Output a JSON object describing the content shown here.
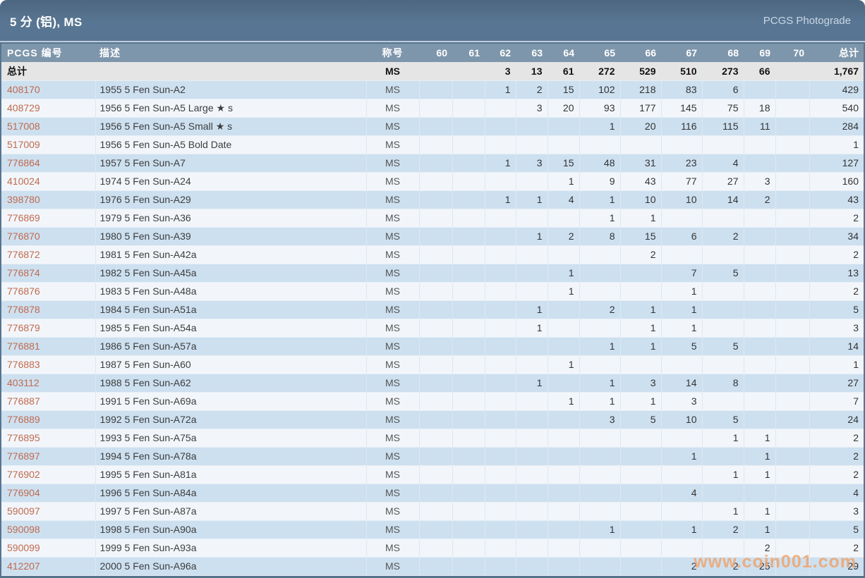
{
  "header": {
    "title": "5 分 (铝), MS",
    "photograde_link": "PCGS Photograde"
  },
  "table": {
    "columns": {
      "pcgs_no": "PCGS 编号",
      "description": "描述",
      "designation": "称号",
      "grades": [
        "60",
        "61",
        "62",
        "63",
        "64",
        "65",
        "66",
        "67",
        "68",
        "69",
        "70"
      ],
      "total": "总计"
    },
    "totals_row": {
      "label": "总计",
      "description": "",
      "designation": "MS",
      "grades": [
        "",
        "",
        "3",
        "13",
        "61",
        "272",
        "529",
        "510",
        "273",
        "66",
        ""
      ],
      "total": "1,767"
    },
    "rows": [
      {
        "pcgs_no": "408170",
        "description": "1955 5 Fen Sun-A2",
        "designation": "MS",
        "grades": [
          "",
          "",
          "1",
          "2",
          "15",
          "102",
          "218",
          "83",
          "6",
          "",
          ""
        ],
        "total": "429"
      },
      {
        "pcgs_no": "408729",
        "description": "1956 5 Fen Sun-A5 Large ★ s",
        "designation": "MS",
        "grades": [
          "",
          "",
          "",
          "3",
          "20",
          "93",
          "177",
          "145",
          "75",
          "18",
          ""
        ],
        "total": "540"
      },
      {
        "pcgs_no": "517008",
        "description": "1956 5 Fen Sun-A5 Small ★ s",
        "designation": "MS",
        "grades": [
          "",
          "",
          "",
          "",
          "",
          "1",
          "20",
          "116",
          "115",
          "11",
          ""
        ],
        "total": "284"
      },
      {
        "pcgs_no": "517009",
        "description": "1956 5 Fen Sun-A5 Bold Date",
        "designation": "MS",
        "grades": [
          "",
          "",
          "",
          "",
          "",
          "",
          "",
          "",
          "",
          "",
          ""
        ],
        "total": "1"
      },
      {
        "pcgs_no": "776864",
        "description": "1957 5 Fen Sun-A7",
        "designation": "MS",
        "grades": [
          "",
          "",
          "1",
          "3",
          "15",
          "48",
          "31",
          "23",
          "4",
          "",
          ""
        ],
        "total": "127"
      },
      {
        "pcgs_no": "410024",
        "description": "1974 5 Fen Sun-A24",
        "designation": "MS",
        "grades": [
          "",
          "",
          "",
          "",
          "1",
          "9",
          "43",
          "77",
          "27",
          "3",
          ""
        ],
        "total": "160"
      },
      {
        "pcgs_no": "398780",
        "description": "1976 5 Fen Sun-A29",
        "designation": "MS",
        "grades": [
          "",
          "",
          "1",
          "1",
          "4",
          "1",
          "10",
          "10",
          "14",
          "2",
          ""
        ],
        "total": "43"
      },
      {
        "pcgs_no": "776869",
        "description": "1979 5 Fen Sun-A36",
        "designation": "MS",
        "grades": [
          "",
          "",
          "",
          "",
          "",
          "1",
          "1",
          "",
          "",
          "",
          ""
        ],
        "total": "2"
      },
      {
        "pcgs_no": "776870",
        "description": "1980 5 Fen Sun-A39",
        "designation": "MS",
        "grades": [
          "",
          "",
          "",
          "1",
          "2",
          "8",
          "15",
          "6",
          "2",
          "",
          ""
        ],
        "total": "34"
      },
      {
        "pcgs_no": "776872",
        "description": "1981 5 Fen Sun-A42a",
        "designation": "MS",
        "grades": [
          "",
          "",
          "",
          "",
          "",
          "",
          "2",
          "",
          "",
          "",
          ""
        ],
        "total": "2"
      },
      {
        "pcgs_no": "776874",
        "description": "1982 5 Fen Sun-A45a",
        "designation": "MS",
        "grades": [
          "",
          "",
          "",
          "",
          "1",
          "",
          "",
          "7",
          "5",
          "",
          ""
        ],
        "total": "13"
      },
      {
        "pcgs_no": "776876",
        "description": "1983 5 Fen Sun-A48a",
        "designation": "MS",
        "grades": [
          "",
          "",
          "",
          "",
          "1",
          "",
          "",
          "1",
          "",
          "",
          ""
        ],
        "total": "2"
      },
      {
        "pcgs_no": "776878",
        "description": "1984 5 Fen Sun-A51a",
        "designation": "MS",
        "grades": [
          "",
          "",
          "",
          "1",
          "",
          "2",
          "1",
          "1",
          "",
          "",
          ""
        ],
        "total": "5"
      },
      {
        "pcgs_no": "776879",
        "description": "1985 5 Fen Sun-A54a",
        "designation": "MS",
        "grades": [
          "",
          "",
          "",
          "1",
          "",
          "",
          "1",
          "1",
          "",
          "",
          ""
        ],
        "total": "3"
      },
      {
        "pcgs_no": "776881",
        "description": "1986 5 Fen Sun-A57a",
        "designation": "MS",
        "grades": [
          "",
          "",
          "",
          "",
          "",
          "1",
          "1",
          "5",
          "5",
          "",
          ""
        ],
        "total": "14"
      },
      {
        "pcgs_no": "776883",
        "description": "1987 5 Fen Sun-A60",
        "designation": "MS",
        "grades": [
          "",
          "",
          "",
          "",
          "1",
          "",
          "",
          "",
          "",
          "",
          ""
        ],
        "total": "1"
      },
      {
        "pcgs_no": "403112",
        "description": "1988 5 Fen Sun-A62",
        "designation": "MS",
        "grades": [
          "",
          "",
          "",
          "1",
          "",
          "1",
          "3",
          "14",
          "8",
          "",
          ""
        ],
        "total": "27"
      },
      {
        "pcgs_no": "776887",
        "description": "1991 5 Fen Sun-A69a",
        "designation": "MS",
        "grades": [
          "",
          "",
          "",
          "",
          "1",
          "1",
          "1",
          "3",
          "",
          "",
          ""
        ],
        "total": "7"
      },
      {
        "pcgs_no": "776889",
        "description": "1992 5 Fen Sun-A72a",
        "designation": "MS",
        "grades": [
          "",
          "",
          "",
          "",
          "",
          "3",
          "5",
          "10",
          "5",
          "",
          ""
        ],
        "total": "24"
      },
      {
        "pcgs_no": "776895",
        "description": "1993 5 Fen Sun-A75a",
        "designation": "MS",
        "grades": [
          "",
          "",
          "",
          "",
          "",
          "",
          "",
          "",
          "1",
          "1",
          ""
        ],
        "total": "2"
      },
      {
        "pcgs_no": "776897",
        "description": "1994 5 Fen Sun-A78a",
        "designation": "MS",
        "grades": [
          "",
          "",
          "",
          "",
          "",
          "",
          "",
          "1",
          "",
          "1",
          ""
        ],
        "total": "2"
      },
      {
        "pcgs_no": "776902",
        "description": "1995 5 Fen Sun-A81a",
        "designation": "MS",
        "grades": [
          "",
          "",
          "",
          "",
          "",
          "",
          "",
          "",
          "1",
          "1",
          ""
        ],
        "total": "2"
      },
      {
        "pcgs_no": "776904",
        "description": "1996 5 Fen Sun-A84a",
        "designation": "MS",
        "grades": [
          "",
          "",
          "",
          "",
          "",
          "",
          "",
          "4",
          "",
          "",
          ""
        ],
        "total": "4"
      },
      {
        "pcgs_no": "590097",
        "description": "1997 5 Fen Sun-A87a",
        "designation": "MS",
        "grades": [
          "",
          "",
          "",
          "",
          "",
          "",
          "",
          "",
          "1",
          "1",
          ""
        ],
        "total": "3"
      },
      {
        "pcgs_no": "590098",
        "description": "1998 5 Fen Sun-A90a",
        "designation": "MS",
        "grades": [
          "",
          "",
          "",
          "",
          "",
          "1",
          "",
          "1",
          "2",
          "1",
          ""
        ],
        "total": "5"
      },
      {
        "pcgs_no": "590099",
        "description": "1999 5 Fen Sun-A93a",
        "designation": "MS",
        "grades": [
          "",
          "",
          "",
          "",
          "",
          "",
          "",
          "",
          "",
          "2",
          ""
        ],
        "total": "2"
      },
      {
        "pcgs_no": "412207",
        "description": "2000 5 Fen Sun-A96a",
        "designation": "MS",
        "grades": [
          "",
          "",
          "",
          "",
          "",
          "",
          "",
          "2",
          "2",
          "25",
          ""
        ],
        "total": "29"
      }
    ]
  },
  "watermark": {
    "text": "www.coin001.com"
  },
  "colors": {
    "frame": "#57748f",
    "header_bg": "#7e96ab",
    "row_odd": "#cde0f0",
    "row_even": "#f2f6fa",
    "totals_bg": "#e5e5e5",
    "pcgs_link": "#c06a4f",
    "watermark": "#f0a269"
  }
}
